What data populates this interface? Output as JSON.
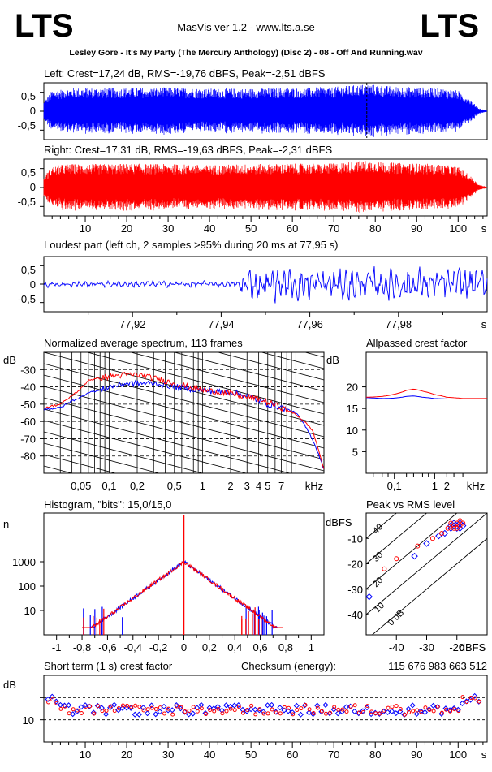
{
  "header": {
    "logo_left": "LTS",
    "logo_right": "LTS",
    "app_title": "MasVis ver 1.2 - www.lts.a.se",
    "file_name": "Lesley Gore - It's My Party (The Mercury Anthology) (Disc 2) - 08 - Off And Running.wav"
  },
  "colors": {
    "left": "#0000ff",
    "right": "#ff0000",
    "grid": "#000000"
  },
  "chart_data": [
    {
      "id": "left_waveform",
      "type": "line",
      "title": "Left: Crest=17,24 dB, RMS=-19,76 dBFS, Peak=-2,51 dBFS",
      "yticks": [
        "0,5",
        "0",
        "-0,5"
      ],
      "ylim": [
        -0.75,
        0.75
      ],
      "xlim": [
        0,
        107
      ],
      "envelope_t": [
        0,
        2,
        5,
        10,
        20,
        30,
        40,
        50,
        60,
        70,
        78,
        85,
        95,
        100,
        103,
        105,
        107
      ],
      "envelope_amp": [
        0.25,
        0.55,
        0.6,
        0.62,
        0.62,
        0.63,
        0.6,
        0.6,
        0.62,
        0.64,
        0.72,
        0.65,
        0.62,
        0.55,
        0.3,
        0.08,
        0.01
      ],
      "marker_t": 77.95
    },
    {
      "id": "right_waveform",
      "type": "line",
      "title": "Right: Crest=17,31 dB, RMS=-19,63 dBFS, Peak=-2,31 dBFS",
      "yticks": [
        "0,5",
        "0",
        "-0,5"
      ],
      "ylim": [
        -0.75,
        0.75
      ],
      "xlim": [
        0,
        107
      ],
      "xticks": [
        "10",
        "20",
        "30",
        "40",
        "50",
        "60",
        "70",
        "80",
        "90",
        "100"
      ],
      "xunit": "s",
      "envelope_t": [
        0,
        2,
        5,
        10,
        20,
        30,
        40,
        50,
        60,
        70,
        78,
        85,
        95,
        100,
        103,
        105,
        107
      ],
      "envelope_amp": [
        0.3,
        0.55,
        0.62,
        0.62,
        0.63,
        0.62,
        0.6,
        0.62,
        0.63,
        0.64,
        0.72,
        0.65,
        0.62,
        0.55,
        0.3,
        0.08,
        0.01
      ]
    },
    {
      "id": "loudest_part",
      "type": "line",
      "title": "Loudest part (left  ch, 2 samples >95% during 20 ms at 77,95 s)",
      "yticks": [
        "0,5",
        "0",
        "-0,5"
      ],
      "ylim": [
        -0.75,
        0.75
      ],
      "xticks": [
        "77,92",
        "77,94",
        "77,96",
        "77,98"
      ],
      "xunit": "s",
      "xlim": [
        77.9,
        78.0
      ]
    },
    {
      "id": "spectrum",
      "type": "line",
      "title": "Normalized average spectrum, 113 frames",
      "ylabel": "dB",
      "yticks": [
        "-30",
        "-40",
        "-50",
        "-60",
        "-70",
        "-80"
      ],
      "ylim": [
        -90,
        -20
      ],
      "xticks": [
        "0,05",
        "0,1",
        "0,2",
        "0,5",
        "1",
        "2",
        "3",
        "4",
        "5",
        "7"
      ],
      "xunit": "kHz",
      "xlim": [
        0.02,
        20
      ],
      "freq_khz": [
        0.02,
        0.03,
        0.04,
        0.05,
        0.06,
        0.08,
        0.1,
        0.15,
        0.2,
        0.3,
        0.5,
        0.7,
        1,
        1.5,
        2,
        3,
        4,
        5,
        7,
        10,
        15,
        20
      ],
      "left_db": [
        -53,
        -52,
        -48,
        -46,
        -43,
        -42,
        -40,
        -38,
        -38,
        -38,
        -40,
        -41,
        -42,
        -43,
        -43,
        -45,
        -48,
        -50,
        -52,
        -55,
        -70,
        -88
      ],
      "right_db": [
        -52,
        -50,
        -45,
        -41,
        -36,
        -35,
        -34,
        -33,
        -33,
        -35,
        -38,
        -40,
        -42,
        -43,
        -44,
        -46,
        -47,
        -49,
        -52,
        -56,
        -65,
        -88
      ]
    },
    {
      "id": "allpass_crest",
      "type": "line",
      "title": "Allpassed crest factor",
      "ylabel": "dB",
      "yticks": [
        "20",
        "15",
        "10",
        "5"
      ],
      "ylim": [
        0,
        28
      ],
      "xticks": [
        "0,1",
        "1",
        "2"
      ],
      "xunit": "kHz",
      "xlim": [
        0.02,
        20
      ],
      "freq_khz": [
        0.02,
        0.05,
        0.1,
        0.2,
        0.3,
        0.5,
        1,
        2,
        5,
        20
      ],
      "left_db": [
        17.5,
        17.3,
        17.4,
        17.8,
        17.9,
        17.6,
        17.3,
        17.2,
        17.2,
        17.2
      ],
      "right_db": [
        17.6,
        17.8,
        18.3,
        19.2,
        19.5,
        19.0,
        18.2,
        17.6,
        17.3,
        17.3
      ],
      "baseline_db": 17.2
    },
    {
      "id": "histogram",
      "type": "line",
      "title": "Histogram, \"bits\": 15,0/15,0",
      "ylabel": "n",
      "yticks": [
        "1000",
        "100",
        "10"
      ],
      "xticks": [
        "-1",
        "-0,8",
        "-0,6",
        "-0,4",
        "-0,2",
        "0",
        "0,2",
        "0,4",
        "0,6",
        "0,8",
        "1"
      ],
      "xlim": [
        -1.1,
        1.1
      ],
      "peak_count": 1000,
      "extent": [
        -0.8,
        0.78
      ]
    },
    {
      "id": "peak_vs_rms",
      "type": "scatter",
      "title": "Peak vs RMS level",
      "ylabel": "dBFS",
      "xlabel": "dBFS",
      "yticks": [
        "-10",
        "-20",
        "-30",
        "-40"
      ],
      "xticks": [
        "-40",
        "-30",
        "-20"
      ],
      "xlim": [
        -50,
        -10
      ],
      "ylim": [
        -48,
        0
      ],
      "diag_labels": [
        "40",
        "30",
        "20",
        "10",
        "0 dB"
      ],
      "left_points": [
        [
          -49,
          -33
        ],
        [
          -34,
          -17
        ],
        [
          -30,
          -12
        ],
        [
          -26,
          -9
        ],
        [
          -24,
          -8
        ],
        [
          -22,
          -6
        ],
        [
          -21,
          -5
        ],
        [
          -20,
          -5
        ],
        [
          -19,
          -4
        ],
        [
          -20,
          -6
        ],
        [
          -21,
          -4
        ],
        [
          -19,
          -6
        ],
        [
          -22,
          -5
        ],
        [
          -18,
          -5
        ]
      ],
      "right_points": [
        [
          -44,
          -22
        ],
        [
          -40,
          -18
        ],
        [
          -33,
          -13
        ],
        [
          -28,
          -10
        ],
        [
          -25,
          -8
        ],
        [
          -23,
          -6
        ],
        [
          -21,
          -5
        ],
        [
          -20,
          -4
        ],
        [
          -19,
          -5
        ],
        [
          -20,
          -6
        ],
        [
          -22,
          -4
        ],
        [
          -18,
          -4
        ],
        [
          -21,
          -6
        ],
        [
          -19,
          -3
        ]
      ]
    },
    {
      "id": "short_term_crest",
      "type": "scatter",
      "title": "Short term (1 s) crest factor",
      "checksum_label": "Checksum (energy):",
      "checksum_value": "115 676 983 663 512",
      "ylabel": "dB",
      "yticks": [
        "10"
      ],
      "ylim": [
        0,
        30
      ],
      "xticks": [
        "10",
        "20",
        "30",
        "40",
        "50",
        "60",
        "70",
        "80",
        "90",
        "100"
      ],
      "xunit": "s",
      "xlim": [
        0,
        107
      ],
      "reference_db": [
        10,
        20
      ],
      "typical_db": 14.5
    }
  ]
}
